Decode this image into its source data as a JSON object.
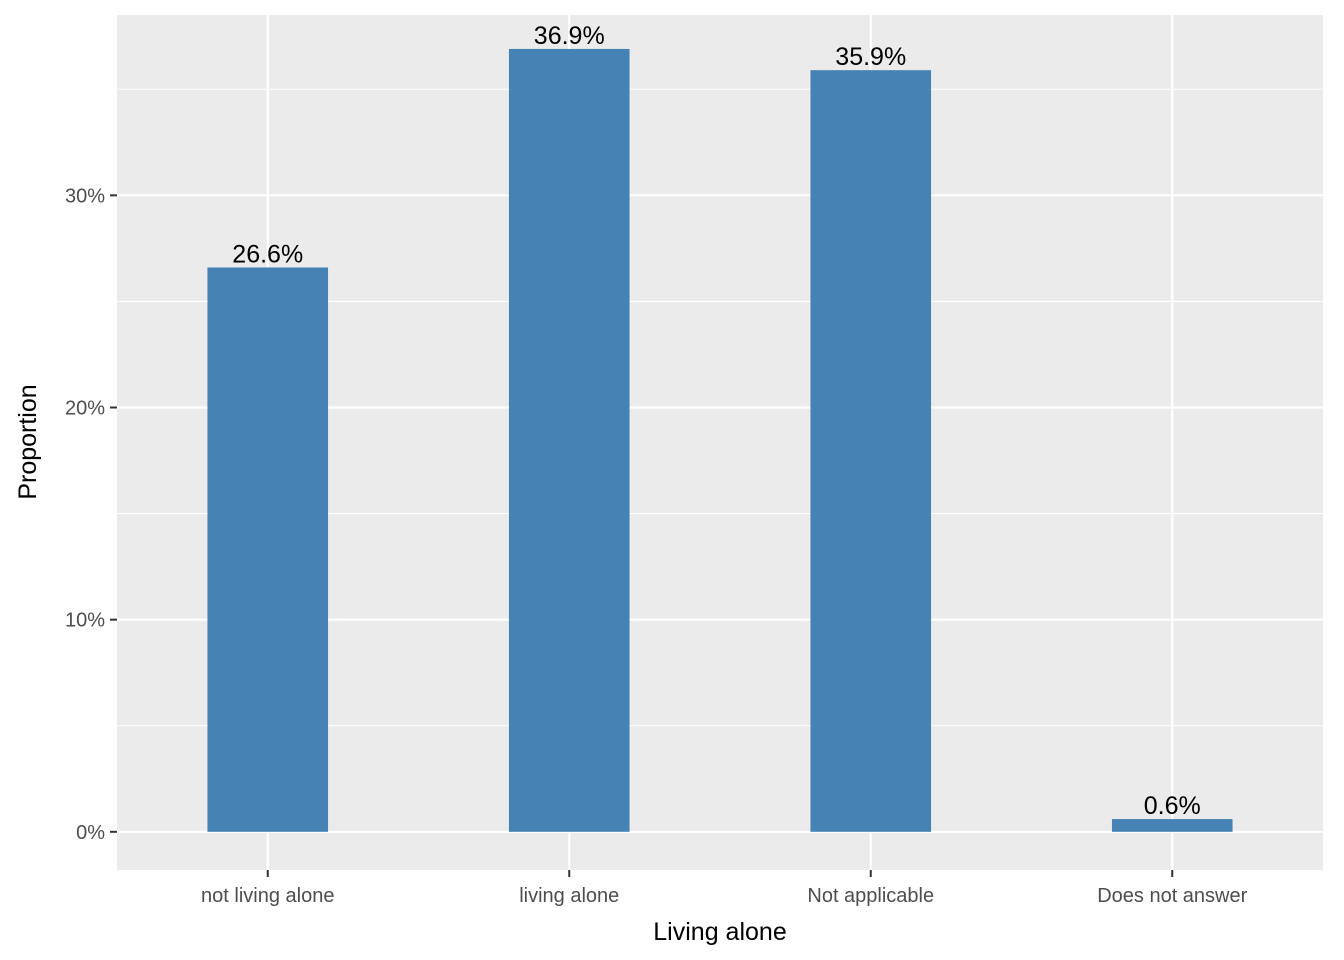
{
  "chart_data": {
    "type": "bar",
    "title": "",
    "xlabel": "Living alone",
    "ylabel": "Proportion",
    "categories": [
      "not living alone",
      "living alone",
      "Not applicable",
      "Does not answer"
    ],
    "values": [
      26.6,
      36.9,
      35.9,
      0.6
    ],
    "data_labels": [
      "26.6%",
      "36.9%",
      "35.9%",
      "0.6%"
    ],
    "y_ticks": [
      0,
      10,
      20,
      30
    ],
    "y_tick_labels": [
      "0%",
      "10%",
      "20%",
      "30%"
    ],
    "ylim": [
      -1.8,
      38.5
    ],
    "grid": true,
    "legend": "none",
    "bar_color": "#4682B4",
    "panel_color": "#EBEBEB",
    "grid_color": "#FFFFFF"
  }
}
